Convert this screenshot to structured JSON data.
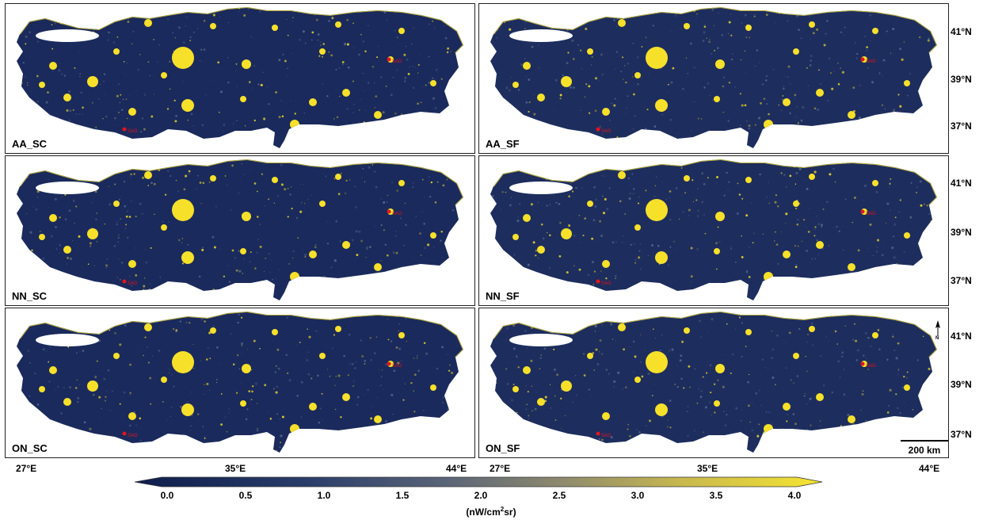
{
  "panels": [
    {
      "label": "AA_SC"
    },
    {
      "label": "AA_SF"
    },
    {
      "label": "NN_SC"
    },
    {
      "label": "NN_SF"
    },
    {
      "label": "ON_SC"
    },
    {
      "label": "ON_SF"
    }
  ],
  "lat_labels": [
    "41°N",
    "39°N",
    "37°N"
  ],
  "lon_labels": [
    "27°E",
    "35°E",
    "44°E"
  ],
  "map_markers": [
    "SAG"
  ],
  "scalebar": {
    "label": "200 km"
  },
  "north_arrow": {
    "label": "N"
  },
  "colorbar": {
    "ticks": [
      "0.0",
      "0.5",
      "1.0",
      "1.5",
      "2.0",
      "2.5",
      "3.0",
      "3.5",
      "4.0"
    ],
    "unit_base": "(nW/cm",
    "unit_sup": "2",
    "unit_tail": "sr)",
    "colors": [
      "#0d1d4d",
      "#2a3d6a",
      "#5a6478",
      "#8e8a6e",
      "#c9b94e",
      "#f6e531"
    ]
  },
  "colors": {
    "night": "#1a2a5c",
    "light": "#f6e02a",
    "marker": "#e4141c"
  }
}
